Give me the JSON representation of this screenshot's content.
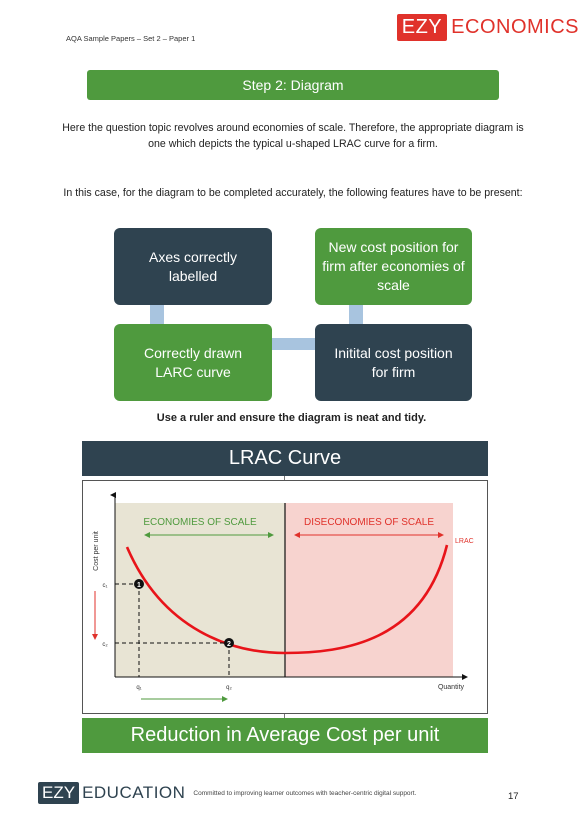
{
  "header": {
    "source": "AQA Sample Papers – Set 2 – Paper 1",
    "logo_ezy": "EZY",
    "logo_economics": "ECONOMICS"
  },
  "step_title": "Step 2: Diagram",
  "paragraphs": {
    "p1": "Here the question topic revolves around economies of scale. Therefore, the appropriate diagram is one which depicts the typical u-shaped LRAC curve for a firm.",
    "p2": "In this case, for the diagram to be completed accurately, the following features have to be present:"
  },
  "features": {
    "axes": "Axes correctly labelled",
    "new_cost": "New cost position for firm after economies of scale",
    "curve": "Correctly drawn LARC curve",
    "initial_cost": "Initital cost position for firm"
  },
  "ruler_note": "Use a ruler and ensure the diagram is neat and tidy.",
  "lrac_title": "LRAC Curve",
  "chart": {
    "y_axis_label": "Cost per unit",
    "x_axis_label": "Quantity",
    "economies_label": "ECONOMIES OF SCALE",
    "diseconomies_label": "DISECONOMIES OF SCALE",
    "curve_label": "LRAC",
    "c1": "c₁",
    "c2": "c₂",
    "q1": "q₁",
    "q2": "q₂",
    "point1": "1",
    "point2": "2",
    "colors": {
      "economies_bg": "#e8e4d4",
      "diseconomies_bg": "#f7d3cf",
      "green_text": "#4f9a3e",
      "red_text": "#e0322b",
      "curve": "#e8141a"
    }
  },
  "reduction_banner": "Reduction in Average Cost per unit",
  "footer": {
    "logo_ezy": "EZY",
    "logo_education": "EDUCATION",
    "tagline": "Committed to improving learner outcomes with teacher-centric digital support.",
    "page_number": "17"
  }
}
